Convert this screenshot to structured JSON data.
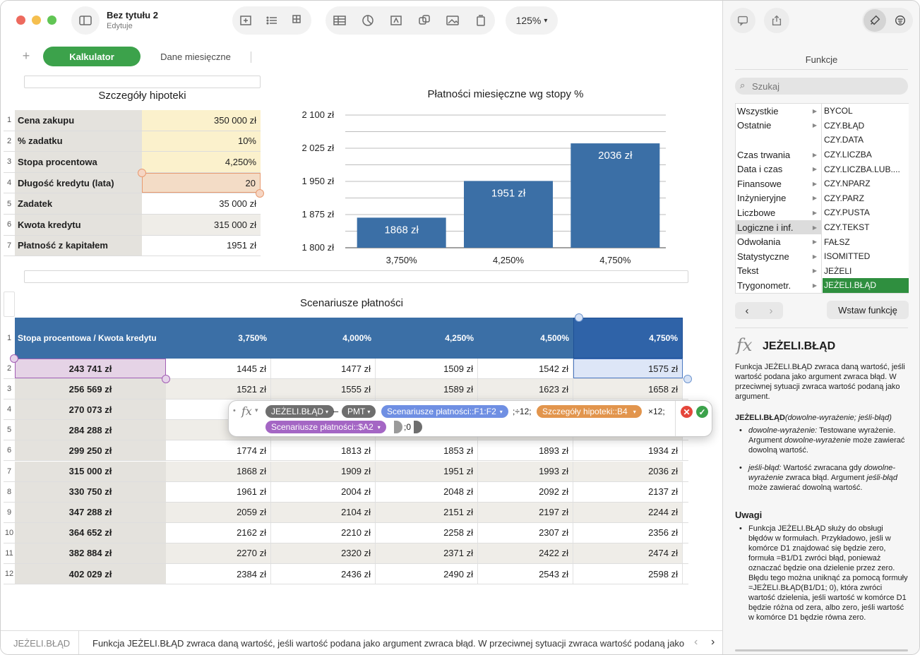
{
  "window": {
    "title": "Bez tytułu 2",
    "subtitle": "Edytuje",
    "zoom": "125%"
  },
  "sheets": {
    "tabs": [
      "Kalkulator",
      "Dane miesięczne"
    ]
  },
  "mortgage": {
    "title": "Szczegóły hipoteki",
    "rows": [
      {
        "n": "1",
        "label": "Cena zakupu",
        "value": "350 000 zł"
      },
      {
        "n": "2",
        "label": "% zadatku",
        "value": "10%"
      },
      {
        "n": "3",
        "label": "Stopa procentowa",
        "value": "4,250%"
      },
      {
        "n": "4",
        "label": "Długość kredytu (lata)",
        "value": "20"
      },
      {
        "n": "5",
        "label": "Zadatek",
        "value": "35 000 zł"
      },
      {
        "n": "6",
        "label": "Kwota kredytu",
        "value": "315 000 zł"
      },
      {
        "n": "7",
        "label": "Płatność z kapitałem",
        "value": "1951 zł"
      }
    ]
  },
  "chart_data": {
    "type": "bar",
    "title": "Płatności miesięczne wg stopy %",
    "categories": [
      "3,750%",
      "4,250%",
      "4,750%"
    ],
    "values": [
      1868,
      1951,
      2036
    ],
    "data_labels": [
      "1868 zł",
      "1951 zł",
      "2036 zł"
    ],
    "yticks": [
      "1 800 zł",
      "1 875 zł",
      "1 950 zł",
      "2 025 zł",
      "2 100 zł"
    ],
    "ylim": [
      1800,
      2100
    ],
    "grid": true,
    "bar_color": "#3b6fa6"
  },
  "scenarios": {
    "title": "Scenariusze płatności",
    "header": {
      "corner": "Stopa procentowa / Kwota kredytu",
      "rates": [
        "3,750%",
        "4,000%",
        "4,250%",
        "4,500%",
        "4,750%"
      ]
    },
    "rows": [
      {
        "n": "2",
        "amount": "243 741 zł",
        "cells": [
          "1445 zł",
          "1477 zł",
          "1509 zł",
          "1542 zł",
          "1575 zł"
        ]
      },
      {
        "n": "3",
        "amount": "256 569 zł",
        "cells": [
          "1521 zł",
          "1555 zł",
          "1589 zł",
          "1623 zł",
          "1658 zł"
        ]
      },
      {
        "n": "4",
        "amount": "270 073 zł",
        "cells": [
          "",
          "",
          "",
          "",
          ""
        ]
      },
      {
        "n": "5",
        "amount": "284 288 zł",
        "cells": [
          "",
          "",
          "",
          "",
          ""
        ]
      },
      {
        "n": "6",
        "amount": "299 250 zł",
        "cells": [
          "1774 zł",
          "1813 zł",
          "1853 zł",
          "1893 zł",
          "1934 zł"
        ]
      },
      {
        "n": "7",
        "amount": "315 000 zł",
        "cells": [
          "1868 zł",
          "1909 zł",
          "1951 zł",
          "1993 zł",
          "2036 zł"
        ]
      },
      {
        "n": "8",
        "amount": "330 750 zł",
        "cells": [
          "1961 zł",
          "2004 zł",
          "2048 zł",
          "2092 zł",
          "2137 zł"
        ]
      },
      {
        "n": "9",
        "amount": "347 288 zł",
        "cells": [
          "2059 zł",
          "2104 zł",
          "2151 zł",
          "2197 zł",
          "2244 zł"
        ]
      },
      {
        "n": "10",
        "amount": "364 652 zł",
        "cells": [
          "2162 zł",
          "2210 zł",
          "2258 zł",
          "2307 zł",
          "2356 zł"
        ]
      },
      {
        "n": "11",
        "amount": "382 884 zł",
        "cells": [
          "2270 zł",
          "2320 zł",
          "2371 zł",
          "2422 zł",
          "2474 zł"
        ]
      },
      {
        "n": "12",
        "amount": "402 029 zł",
        "cells": [
          "2384 zł",
          "2436 zł",
          "2490 zł",
          "2543 zł",
          "2598 zł"
        ]
      }
    ],
    "header_color": "#3b6fa6"
  },
  "formula": {
    "fx": "fx",
    "tok_iferror": "JEŻELI.BŁĄD",
    "tok_minus": "–",
    "tok_pmt": "PMT",
    "tok_ref1": "Scenariusze płatności::F1:F2",
    "sep1": ";÷12;",
    "tok_ref2": "Szczegóły hipoteki::B4",
    "sep2": "×12;",
    "tok_ref3": "Scenariusze płatności::$A2",
    "sep3": ";0"
  },
  "panel": {
    "title": "Funkcje",
    "search_placeholder": "Szukaj",
    "categories": [
      "Wszystkie",
      "Ostatnie",
      "",
      "Czas trwania",
      "Data i czas",
      "Finansowe",
      "Inżynieryjne",
      "Liczbowe",
      "Logiczne i inf.",
      "Odwołania",
      "Statystyczne",
      "Tekst",
      "Trygonometr."
    ],
    "functions": [
      "BYCOL",
      "CZY.BŁĄD",
      "CZY.DATA",
      "CZY.LICZBA",
      "CZY.LICZBA.LUB....",
      "CZY.NPARZ",
      "CZY.PARZ",
      "CZY.PUSTA",
      "CZY.TEKST",
      "FAŁSZ",
      "ISOMITTED",
      "JEŻELI",
      "JEŻELI.BŁĄD"
    ],
    "insert_button": "Wstaw funkcję",
    "fn_title": "JEŻELI.BŁĄD",
    "fn_desc": "Funkcja JEŻELI.BŁĄD zwraca daną wartość, jeśli wartość podana jako argument zwraca błąd. W przeciwnej sytuacji zwraca wartość podaną jako argument.",
    "syntax_name": "JEŻELI.BŁĄD",
    "syntax_args": "(dowolne-wyrażenie; jeśli-błąd)",
    "arg1_name": "dowolne-wyrażenie:",
    "arg1_text": "Testowane wyrażenie. Argument",
    "arg1_em": "dowolne-wyrażenie",
    "arg1_tail": "może zawierać dowolną wartość.",
    "arg2_name": "jeśli-błąd:",
    "arg2_text": "Wartość zwracana gdy",
    "arg2_em": "dowolne-wyrażenie",
    "arg2_mid": "zwraca błąd. Argument",
    "arg2_em2": "jeśli-błąd",
    "arg2_tail": "może zawierać dowolną wartość.",
    "notes_title": "Uwagi",
    "notes_text": "Funkcja JEŻELI.BŁĄD służy do obsługi błędów w formułach. Przykładowo, jeśli w komórce D1 znajdować się będzie zero, formuła =B1/D1 zwróci błąd, ponieważ oznaczać będzie ona dzielenie przez zero. Błędu tego można uniknąć za pomocą formuły =JEŻELI.BŁĄD(B1/D1; 0), która zwróci wartość dzielenia, jeśli wartość w komórce D1 będzie różna od zera, albo zero, jeśli wartość w komórce D1 będzie równa zero."
  },
  "footer": {
    "fn": "JEŻELI.BŁĄD",
    "text": "Funkcja JEŻELI.BŁĄD zwraca daną wartość, jeśli wartość podana jako argument zwraca błąd. W przeciwnej sytuacji zwraca wartość podaną jako"
  }
}
